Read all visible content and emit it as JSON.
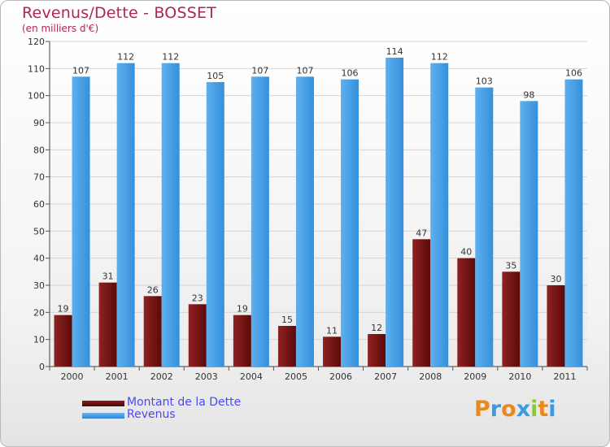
{
  "title": "Revenus/Dette - BOSSET",
  "subtitle": "(en milliers d'€)",
  "logo": {
    "letters": [
      "P",
      "r",
      "o",
      "x",
      "i",
      "t",
      "i"
    ],
    "colors": [
      "#e8891e",
      "#3b9be0",
      "#e8891e",
      "#3b9be0",
      "#8cc63f",
      "#e8891e",
      "#3b9be0"
    ]
  },
  "colors": {
    "dette": "#7a1313",
    "revenus": "#4aa1e6",
    "title": "#b0245a",
    "legend_text": "#4a4af0"
  },
  "chart_data": {
    "type": "bar",
    "categories": [
      "2000",
      "2001",
      "2002",
      "2003",
      "2004",
      "2005",
      "2006",
      "2007",
      "2008",
      "2009",
      "2010",
      "2011"
    ],
    "series": [
      {
        "name": "Montant de la Dette",
        "values": [
          19,
          31,
          26,
          23,
          19,
          15,
          11,
          12,
          47,
          40,
          35,
          30
        ]
      },
      {
        "name": "Revenus",
        "values": [
          107,
          112,
          112,
          105,
          107,
          107,
          106,
          114,
          112,
          103,
          98,
          106
        ]
      }
    ],
    "ylim": [
      0,
      120
    ],
    "yticks": [
      0,
      10,
      20,
      30,
      40,
      50,
      60,
      70,
      80,
      90,
      100,
      110,
      120
    ],
    "grid": true,
    "legend_position": "bottom-left"
  }
}
